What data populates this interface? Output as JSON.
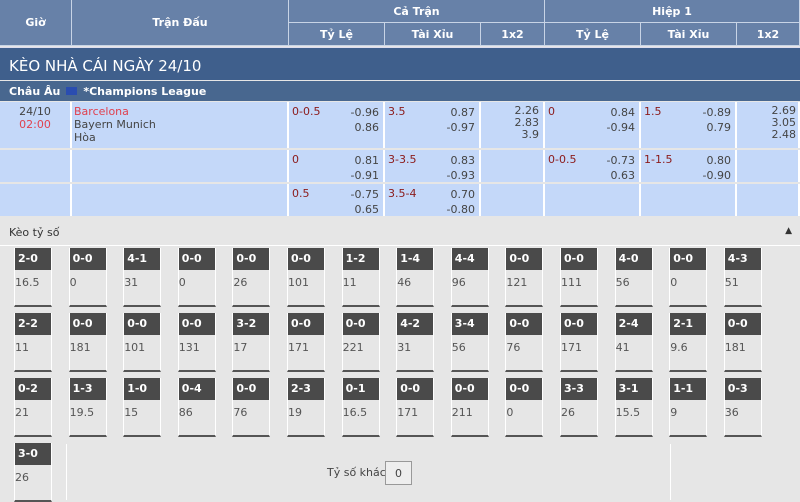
{
  "header": {
    "gio": "Giờ",
    "tran_dau": "Trận Đấu",
    "ca_tran": "Cả Trận",
    "hiep1": "Hiệp 1",
    "ty_le": "Tỷ Lệ",
    "tai_xiu": "Tài Xỉu",
    "x12": "1x2"
  },
  "title": "KÈO NHÀ CÁI NGÀY 24/10",
  "league": {
    "region": "Châu Âu",
    "name": "*Champions League"
  },
  "match": {
    "date": "24/10",
    "time": "02:00",
    "home": "Barcelona",
    "away": "Bayern Munich",
    "draw": "Hòa"
  },
  "rows": [
    {
      "ft_hcp": "0-0.5",
      "ft_hcp_odds": [
        "-0.96",
        "0.86"
      ],
      "ft_ou": "3.5",
      "ft_ou_odds": [
        "0.87",
        "-0.97"
      ],
      "ft_1x2": [
        "2.26",
        "2.83",
        "3.9"
      ],
      "h1_hcp": "0",
      "h1_hcp_odds": [
        "0.84",
        "-0.94"
      ],
      "h1_ou": "1.5",
      "h1_ou_odds": [
        "-0.89",
        "0.79"
      ],
      "h1_1x2": [
        "2.69",
        "3.05",
        "2.48"
      ]
    },
    {
      "ft_hcp": "0",
      "ft_hcp_odds": [
        "0.81",
        "-0.91"
      ],
      "ft_ou": "3-3.5",
      "ft_ou_odds": [
        "0.83",
        "-0.93"
      ],
      "h1_hcp": "0-0.5",
      "h1_hcp_odds": [
        "-0.73",
        "0.63"
      ],
      "h1_ou": "1-1.5",
      "h1_ou_odds": [
        "0.80",
        "-0.90"
      ]
    },
    {
      "ft_hcp": "0.5",
      "ft_hcp_odds": [
        "-0.75",
        "0.65"
      ],
      "ft_ou": "3.5-4",
      "ft_ou_odds": [
        "0.70",
        "-0.80"
      ]
    }
  ],
  "correct_score": {
    "title": "Kèo tỷ số",
    "other_label": "Tỷ số khác",
    "other_value": "0",
    "cards": [
      [
        "2-0",
        "16.5"
      ],
      [
        "0-0",
        "0"
      ],
      [
        "4-1",
        "31"
      ],
      [
        "0-0",
        "0"
      ],
      [
        "0-0",
        "26"
      ],
      [
        "0-0",
        "101"
      ],
      [
        "1-2",
        "11"
      ],
      [
        "1-4",
        "46"
      ],
      [
        "4-4",
        "96"
      ],
      [
        "0-0",
        "121"
      ],
      [
        "0-0",
        "111"
      ],
      [
        "4-0",
        "56"
      ],
      [
        "0-0",
        "0"
      ],
      [
        "4-3",
        "51"
      ],
      [
        "2-2",
        "11"
      ],
      [
        "0-0",
        "181"
      ],
      [
        "0-0",
        "101"
      ],
      [
        "0-0",
        "131"
      ],
      [
        "3-2",
        "17"
      ],
      [
        "0-0",
        "171"
      ],
      [
        "0-0",
        "221"
      ],
      [
        "4-2",
        "31"
      ],
      [
        "3-4",
        "56"
      ],
      [
        "0-0",
        "76"
      ],
      [
        "0-0",
        "171"
      ],
      [
        "2-4",
        "41"
      ],
      [
        "2-1",
        "9.6"
      ],
      [
        "0-0",
        "181"
      ],
      [
        "0-2",
        "21"
      ],
      [
        "1-3",
        "19.5"
      ],
      [
        "1-0",
        "15"
      ],
      [
        "0-4",
        "86"
      ],
      [
        "0-0",
        "76"
      ],
      [
        "2-3",
        "19"
      ],
      [
        "0-1",
        "16.5"
      ],
      [
        "0-0",
        "171"
      ],
      [
        "0-0",
        "211"
      ],
      [
        "0-0",
        "0"
      ],
      [
        "3-3",
        "26"
      ],
      [
        "3-1",
        "15.5"
      ],
      [
        "1-1",
        "9"
      ],
      [
        "0-3",
        "36"
      ],
      [
        "3-0",
        "26"
      ]
    ]
  }
}
